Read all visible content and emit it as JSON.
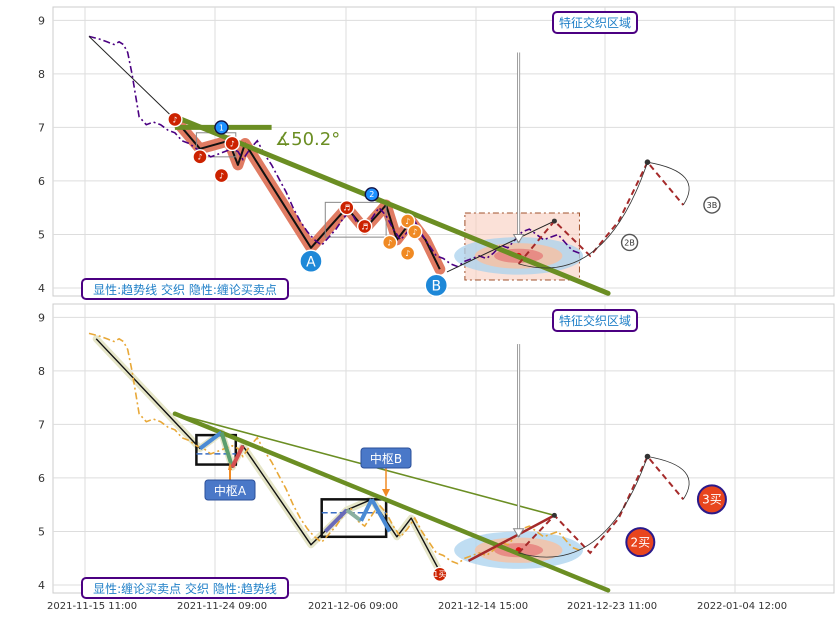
{
  "chart_data": {
    "type": "line",
    "x_ticks": [
      "2021-11-15 11:00",
      "2021-11-24 09:00",
      "2021-12-06 09:00",
      "2021-12-14 15:00",
      "2021-12-23 11:00",
      "2022-01-04 12:00"
    ],
    "x_range": [
      0,
      100
    ],
    "y_range": [
      3.85,
      9.25
    ],
    "y_ticks": [
      4,
      5,
      6,
      7,
      8,
      9
    ],
    "grid": true,
    "colors": {
      "price_top": "#4b0082",
      "price_bottom": "#e8a838",
      "trend": "#6b8e23",
      "stroke_band": "#e07b62",
      "projection": "#a52a2a",
      "label_border": "#4b0082",
      "label_text": "#1f7fc7",
      "zone_box": "#f7c9b8",
      "ellipse_outer": "#a9d2ee",
      "ellipse_mid": "#f5c2a6",
      "ellipse_inner": "#e57373",
      "marker_red": "#cc2200",
      "marker_orange": "#f08a24",
      "marker_blue": "#1e90ff",
      "callout_bg": "#4a78c8",
      "buy_fill": "#e8451e"
    },
    "panels": [
      {
        "name": "top",
        "legend": "显性:趋势线 交织 隐性:缠论买卖点",
        "zone_label": "特征交织区域",
        "angle_label": "∡50.2°",
        "price": [
          [
            0,
            8.7
          ],
          [
            1.5,
            8.65
          ],
          [
            2.5,
            8.6
          ],
          [
            3.5,
            8.55
          ],
          [
            4.2,
            8.6
          ],
          [
            4.8,
            8.55
          ],
          [
            5.4,
            8.4
          ],
          [
            6,
            8.0
          ],
          [
            7,
            7.2
          ],
          [
            8,
            7.05
          ],
          [
            9,
            7.1
          ],
          [
            10,
            7.05
          ],
          [
            11,
            6.95
          ],
          [
            12,
            6.9
          ],
          [
            13,
            6.75
          ],
          [
            14,
            6.7
          ],
          [
            15,
            6.6
          ],
          [
            16,
            6.55
          ],
          [
            17,
            6.45
          ],
          [
            18,
            6.5
          ],
          [
            19,
            6.55
          ],
          [
            20,
            6.6
          ],
          [
            20.8,
            6.55
          ],
          [
            21.5,
            6.4
          ],
          [
            22.5,
            6.6
          ],
          [
            23.5,
            6.75
          ],
          [
            24.5,
            6.5
          ],
          [
            25.5,
            6.3
          ],
          [
            26.5,
            6.05
          ],
          [
            27.5,
            5.8
          ],
          [
            28.5,
            5.5
          ],
          [
            29.5,
            5.25
          ],
          [
            30.5,
            5.05
          ],
          [
            31.5,
            4.9
          ],
          [
            32.5,
            4.8
          ],
          [
            33.5,
            4.95
          ],
          [
            34.5,
            5.1
          ],
          [
            35.5,
            5.3
          ],
          [
            36.5,
            5.45
          ],
          [
            37.5,
            5.2
          ],
          [
            38.5,
            5.1
          ],
          [
            39.5,
            5.3
          ],
          [
            40.5,
            5.5
          ],
          [
            41.5,
            5.35
          ],
          [
            42.5,
            5.1
          ],
          [
            43.5,
            4.9
          ],
          [
            44.5,
            5.05
          ],
          [
            45.5,
            5.25
          ],
          [
            46.5,
            5.0
          ],
          [
            47.5,
            4.8
          ],
          [
            48.5,
            4.6
          ],
          [
            49.5,
            4.55
          ],
          [
            50.5,
            4.45
          ],
          [
            51.5,
            4.4
          ],
          [
            52.5,
            4.5
          ],
          [
            53.5,
            4.55
          ],
          [
            54.5,
            4.6
          ],
          [
            55.5,
            4.55
          ],
          [
            56.5,
            4.65
          ],
          [
            57.5,
            4.8
          ],
          [
            58.5,
            4.75
          ],
          [
            59.5,
            4.9
          ],
          [
            60.5,
            5.05
          ],
          [
            61.5,
            5.1
          ],
          [
            62.5,
            5.0
          ],
          [
            63.5,
            4.9
          ],
          [
            64.5,
            4.95
          ],
          [
            65.5,
            5.0
          ],
          [
            66.5,
            4.85
          ],
          [
            67.5,
            4.7
          ],
          [
            68.5,
            4.65
          ]
        ],
        "trend_upper": [
          [
            12,
            7.15
          ],
          [
            31,
            4.75
          ],
          [
            36,
            5.05
          ],
          [
            39.5,
            5.55
          ],
          [
            49,
            4.35
          ]
        ],
        "trend_main": [
          [
            12,
            7.2
          ],
          [
            72.5,
            3.9
          ]
        ],
        "trend_flat": [
          [
            12,
            7.0
          ],
          [
            25.5,
            7.0
          ]
        ],
        "arrow_thin_from": [
          [
            0,
            8.7
          ],
          [
            12,
            7.15
          ]
        ],
        "strokes": [
          [
            12,
            7.15
          ],
          [
            15.5,
            6.6
          ],
          [
            19.5,
            6.75
          ],
          [
            20.8,
            6.3
          ],
          [
            21.8,
            6.7
          ],
          [
            31,
            4.75
          ],
          [
            36,
            5.5
          ],
          [
            38.5,
            5.1
          ],
          [
            41.5,
            5.55
          ],
          [
            43,
            4.9
          ],
          [
            45,
            5.25
          ],
          [
            47,
            4.9
          ],
          [
            49,
            4.35
          ]
        ],
        "pivot_boxes": [
          [
            [
              15,
              6.45
            ],
            [
              20.5,
              6.9
            ]
          ],
          [
            [
              33,
              4.95
            ],
            [
              41.5,
              5.6
            ]
          ]
        ],
        "projection": [
          [
            60,
            4.45
          ],
          [
            65,
            5.25
          ],
          [
            70,
            4.6
          ],
          [
            74,
            5.25
          ],
          [
            78,
            6.35
          ],
          [
            83,
            5.55
          ]
        ],
        "thin_line": [
          [
            50,
            4.3
          ],
          [
            65,
            5.25
          ]
        ],
        "ellipse": [
          60,
          4.6,
          9,
          0.35
        ],
        "zone_box": [
          [
            52.5,
            4.15
          ],
          [
            68.5,
            5.4
          ]
        ],
        "zone_arrow": [
          [
            60,
            8.4
          ],
          [
            60,
            4.85
          ]
        ],
        "markers": [
          {
            "x": 12,
            "y": 7.15,
            "kind": "red",
            "text": "♪"
          },
          {
            "x": 15.5,
            "y": 6.45,
            "kind": "red",
            "text": "♪"
          },
          {
            "x": 18.5,
            "y": 7.0,
            "kind": "blue",
            "text": "1"
          },
          {
            "x": 18.5,
            "y": 6.1,
            "kind": "red",
            "text": "♪"
          },
          {
            "x": 20.0,
            "y": 6.7,
            "kind": "red",
            "text": "♪"
          },
          {
            "x": 31.0,
            "y": 4.5,
            "kind": "big_blue",
            "text": "A"
          },
          {
            "x": 36.0,
            "y": 5.5,
            "kind": "red",
            "text": "♬"
          },
          {
            "x": 38.5,
            "y": 5.15,
            "kind": "red",
            "text": "♬"
          },
          {
            "x": 39.5,
            "y": 5.75,
            "kind": "blue",
            "text": "2"
          },
          {
            "x": 42.0,
            "y": 4.85,
            "kind": "orange",
            "text": "♪"
          },
          {
            "x": 44.5,
            "y": 5.25,
            "kind": "orange",
            "text": "♪"
          },
          {
            "x": 45.5,
            "y": 5.05,
            "kind": "orange",
            "text": "♪"
          },
          {
            "x": 44.5,
            "y": 4.65,
            "kind": "orange",
            "text": "♪"
          },
          {
            "x": 48.5,
            "y": 4.05,
            "kind": "big_blue",
            "text": "B"
          },
          {
            "x": 75.5,
            "y": 4.85,
            "kind": "ghost",
            "text": "2B"
          },
          {
            "x": 87,
            "y": 5.55,
            "kind": "ghost",
            "text": "3B"
          }
        ]
      },
      {
        "name": "bottom",
        "legend": "显性:缠论买卖点 交织 隐性:趋势线",
        "zone_label": "特征交织区域",
        "pivot_a_label": "中枢A",
        "pivot_b_label": "中枢B",
        "price": [
          [
            0,
            8.7
          ],
          [
            1.5,
            8.65
          ],
          [
            2.5,
            8.6
          ],
          [
            3.5,
            8.55
          ],
          [
            4.2,
            8.6
          ],
          [
            4.8,
            8.55
          ],
          [
            5.4,
            8.4
          ],
          [
            6,
            8.0
          ],
          [
            7,
            7.2
          ],
          [
            8,
            7.05
          ],
          [
            9,
            7.1
          ],
          [
            10,
            7.05
          ],
          [
            11,
            6.95
          ],
          [
            12,
            6.9
          ],
          [
            13,
            6.75
          ],
          [
            14,
            6.7
          ],
          [
            15,
            6.6
          ],
          [
            16,
            6.55
          ],
          [
            17,
            6.45
          ],
          [
            18,
            6.5
          ],
          [
            19,
            6.55
          ],
          [
            20,
            6.6
          ],
          [
            20.8,
            6.55
          ],
          [
            21.5,
            6.4
          ],
          [
            22.5,
            6.6
          ],
          [
            23.5,
            6.75
          ],
          [
            24.5,
            6.5
          ],
          [
            25.5,
            6.3
          ],
          [
            26.5,
            6.05
          ],
          [
            27.5,
            5.8
          ],
          [
            28.5,
            5.5
          ],
          [
            29.5,
            5.25
          ],
          [
            30.5,
            5.05
          ],
          [
            31.5,
            4.9
          ],
          [
            32.5,
            4.8
          ],
          [
            33.5,
            4.95
          ],
          [
            34.5,
            5.1
          ],
          [
            35.5,
            5.3
          ],
          [
            36.5,
            5.45
          ],
          [
            37.5,
            5.2
          ],
          [
            38.5,
            5.1
          ],
          [
            39.5,
            5.3
          ],
          [
            40.5,
            5.5
          ],
          [
            41.5,
            5.35
          ],
          [
            42.5,
            5.1
          ],
          [
            43.5,
            4.9
          ],
          [
            44.5,
            5.05
          ],
          [
            45.5,
            5.25
          ],
          [
            46.5,
            5.0
          ],
          [
            47.5,
            4.8
          ],
          [
            48.5,
            4.6
          ],
          [
            49.5,
            4.55
          ],
          [
            50.5,
            4.45
          ],
          [
            51.5,
            4.4
          ],
          [
            52.5,
            4.5
          ],
          [
            53.5,
            4.55
          ],
          [
            54.5,
            4.6
          ],
          [
            55.5,
            4.55
          ],
          [
            56.5,
            4.65
          ],
          [
            57.5,
            4.8
          ],
          [
            58.5,
            4.75
          ],
          [
            59.5,
            4.9
          ],
          [
            60.5,
            5.05
          ],
          [
            61.5,
            5.1
          ],
          [
            62.5,
            5.0
          ],
          [
            63.5,
            4.9
          ],
          [
            64.5,
            4.95
          ],
          [
            65.5,
            5.0
          ],
          [
            66.5,
            4.85
          ],
          [
            67.5,
            4.7
          ],
          [
            68.5,
            4.65
          ]
        ],
        "trend_main": [
          [
            12,
            7.2
          ],
          [
            72.5,
            3.9
          ]
        ],
        "trend_thin": [
          [
            12,
            7.2
          ],
          [
            65,
            5.3
          ]
        ],
        "strokes": [
          [
            1,
            8.6
          ],
          [
            15.5,
            6.55
          ],
          [
            18.5,
            6.85
          ],
          [
            20,
            6.2
          ],
          [
            21.5,
            6.6
          ],
          [
            31,
            4.75
          ],
          [
            36,
            5.4
          ],
          [
            39.5,
            5.6
          ],
          [
            43,
            4.9
          ],
          [
            45,
            5.25
          ],
          [
            49,
            4.25
          ]
        ],
        "pivot_boxes": [
          [
            [
              15,
              6.25
            ],
            [
              20.5,
              6.8
            ]
          ],
          [
            [
              32.5,
              4.9
            ],
            [
              41.5,
              5.6
            ]
          ]
        ],
        "pivot_dash": [
          [
            [
              15,
              6.45
            ],
            [
              20.5,
              6.45
            ]
          ],
          [
            [
              32.5,
              5.35
            ],
            [
              41.5,
              5.35
            ]
          ]
        ],
        "projection": [
          [
            60,
            4.6
          ],
          [
            65,
            5.3
          ],
          [
            70,
            4.6
          ],
          [
            74,
            5.25
          ],
          [
            78,
            6.4
          ],
          [
            83,
            5.6
          ]
        ],
        "thin_line": [
          [
            53,
            4.45
          ],
          [
            65,
            5.3
          ]
        ],
        "ellipse": [
          60,
          4.65,
          9,
          0.35
        ],
        "zone_arrow": [
          [
            60,
            8.5
          ],
          [
            60,
            4.9
          ]
        ],
        "markers": [
          {
            "x": 49,
            "y": 4.2,
            "kind": "red",
            "text": "1买"
          },
          {
            "x": 77,
            "y": 4.8,
            "kind": "buy",
            "text": "2买"
          },
          {
            "x": 87,
            "y": 5.6,
            "kind": "buy",
            "text": "3买"
          }
        ]
      }
    ]
  }
}
